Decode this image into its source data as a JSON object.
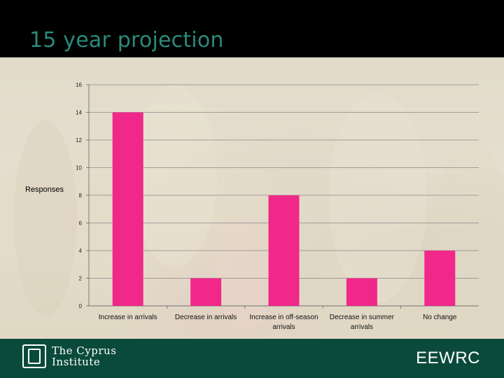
{
  "slide": {
    "title": "15 year projection"
  },
  "footer": {
    "institute_line1": "The Cyprus",
    "institute_line2": "Institute",
    "brand": "EEWRC"
  },
  "colors": {
    "bar": "#f0288a",
    "title": "#2a8a7a",
    "footer_bg": "#0a4a3a"
  },
  "chart_data": {
    "type": "bar",
    "title": "",
    "xlabel": "",
    "ylabel": "Responses",
    "categories": [
      [
        "Increase in arrivals"
      ],
      [
        "Decrease in arrivals"
      ],
      [
        "Increase in off-season",
        "arrivals"
      ],
      [
        "Decrease in summer",
        "arrivals"
      ],
      [
        "No change"
      ]
    ],
    "values": [
      14,
      2,
      8,
      2,
      4
    ],
    "ylim": [
      0,
      16
    ],
    "yticks": [
      0,
      2,
      4,
      6,
      8,
      10,
      12,
      14,
      16
    ],
    "grid": true,
    "legend": "none"
  }
}
